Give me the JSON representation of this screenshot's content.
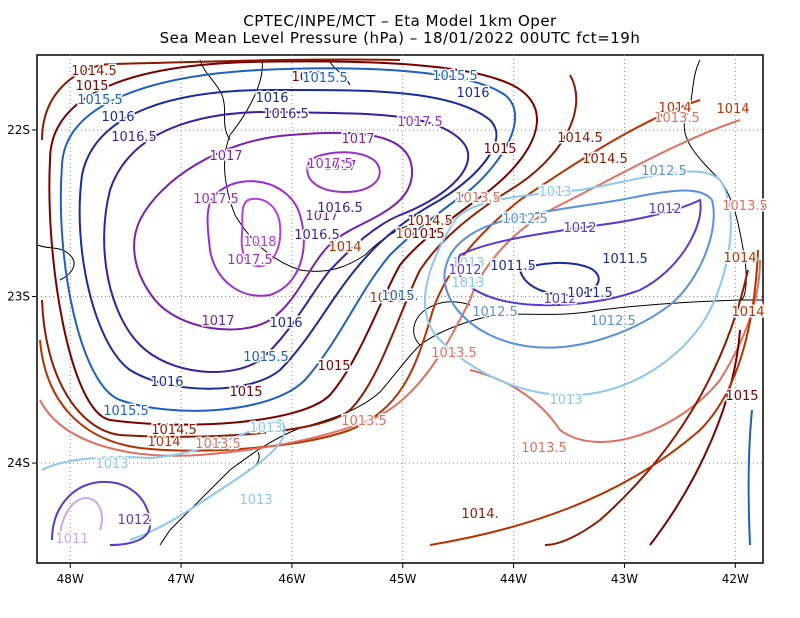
{
  "title_line1": "CPTEC/INPE/MCT –  Eta Model 1km Oper",
  "title_line2": "Sea Mean Level Pressure (hPa) – 18/01/2022 00UTC fct=19h",
  "map": {
    "lon_range": [
      -48.3,
      -41.75
    ],
    "lat_range": [
      -24.6,
      -21.55
    ],
    "x_ticks": [
      "48W",
      "47W",
      "46W",
      "45W",
      "44W",
      "43W",
      "42W"
    ],
    "y_ticks": [
      "22S",
      "23S",
      "24S"
    ],
    "grid": "dotted"
  },
  "contour_labels": [
    {
      "text": "1014.5",
      "color": "#8b1a00"
    },
    {
      "text": "1015",
      "color": "#7a0000"
    },
    {
      "text": "1015.5",
      "color": "#1f5fc2"
    },
    {
      "text": "1016",
      "color": "#1a2aa0"
    },
    {
      "text": "1016.5",
      "color": "#3a1fa0"
    },
    {
      "text": "1017",
      "color": "#7a1fb0"
    },
    {
      "text": "1017.5",
      "color": "#9a2fd0"
    },
    {
      "text": "1018",
      "color": "#b040e0"
    },
    {
      "text": "1015",
      "color": "#7a0000"
    },
    {
      "text": "1015.5",
      "color": "#1f5fc2"
    },
    {
      "text": "1016",
      "color": "#1a2aa0"
    },
    {
      "text": "1016.5",
      "color": "#3a1fa0"
    },
    {
      "text": "1017",
      "color": "#7a1fb0"
    },
    {
      "text": "1017",
      "color": "#7a1fb0"
    },
    {
      "text": "1017",
      "color": "#7a1fb0"
    },
    {
      "text": "1017.5",
      "color": "#9a2fd0"
    },
    {
      "text": "1017.5",
      "color": "#9a2fd0"
    },
    {
      "text": "1017.5",
      "color": "#9a2fd0"
    },
    {
      "text": "1017",
      "color": "#7a1fb0"
    },
    {
      "text": "1016.5",
      "color": "#3a1fa0"
    },
    {
      "text": "1016",
      "color": "#1a2aa0"
    },
    {
      "text": "1016.5",
      "color": "#3a1fa0"
    },
    {
      "text": "1015.5",
      "color": "#1f5fc2"
    },
    {
      "text": "1016",
      "color": "#1a2aa0"
    },
    {
      "text": "1015.5",
      "color": "#1f5fc2"
    },
    {
      "text": "1015",
      "color": "#7a0000"
    },
    {
      "text": "1014.5",
      "color": "#8b1a00"
    },
    {
      "text": "1014",
      "color": "#b83200"
    },
    {
      "text": "1014",
      "color": "#b83200"
    },
    {
      "text": "1013.5",
      "color": "#e07060"
    },
    {
      "text": "1013.5",
      "color": "#e07060"
    },
    {
      "text": "1013",
      "color": "#8ec8f0"
    },
    {
      "text": "1013",
      "color": "#8ec8f0"
    },
    {
      "text": "1013",
      "color": "#8ec8f0"
    },
    {
      "text": "1012",
      "color": "#5a3ad0"
    },
    {
      "text": "1011",
      "color": "#c8a8f0"
    },
    {
      "text": "1014",
      "color": "#b83200"
    },
    {
      "text": "1014.5",
      "color": "#8b1a00"
    },
    {
      "text": "1015",
      "color": "#7a0000"
    },
    {
      "text": "1016",
      "color": "#1a2aa0"
    },
    {
      "text": "1015.5",
      "color": "#1f5fc2"
    },
    {
      "text": "1015",
      "color": "#7a0000"
    },
    {
      "text": "1014.5",
      "color": "#8b1a00"
    },
    {
      "text": "1015",
      "color": "#7a0000"
    },
    {
      "text": "1014.5",
      "color": "#8b1a00"
    },
    {
      "text": "1014",
      "color": "#b83200"
    },
    {
      "text": "1014",
      "color": "#b83200"
    },
    {
      "text": "1013.5",
      "color": "#e07060"
    },
    {
      "text": "1013.5",
      "color": "#e07060"
    },
    {
      "text": "1013.5",
      "color": "#e07060"
    },
    {
      "text": "1013.5",
      "color": "#e07060"
    },
    {
      "text": "1013",
      "color": "#8ec8f0"
    },
    {
      "text": "1013",
      "color": "#8ec8f0"
    },
    {
      "text": "1013",
      "color": "#8ec8f0"
    },
    {
      "text": "1013",
      "color": "#8ec8f0"
    },
    {
      "text": "1012.5",
      "color": "#5a90e0"
    },
    {
      "text": "1012.5",
      "color": "#5a90e0"
    },
    {
      "text": "1012.5",
      "color": "#5a90e0"
    },
    {
      "text": "1012.5",
      "color": "#5a90e0"
    },
    {
      "text": "1012",
      "color": "#5a3ad0"
    },
    {
      "text": "1012",
      "color": "#5a3ad0"
    },
    {
      "text": "1012",
      "color": "#5a3ad0"
    },
    {
      "text": "1012",
      "color": "#5a3ad0"
    },
    {
      "text": "1011.5",
      "color": "#1a2aa0"
    },
    {
      "text": "1011.5",
      "color": "#1a2aa0"
    },
    {
      "text": "1011.5",
      "color": "#1a2aa0"
    },
    {
      "text": "1013.5",
      "color": "#e07060"
    },
    {
      "text": "1014",
      "color": "#b83200"
    },
    {
      "text": "1014",
      "color": "#b83200"
    },
    {
      "text": "1014",
      "color": "#b83200"
    },
    {
      "text": "1014.",
      "color": "#8b1a00"
    },
    {
      "text": "1015",
      "color": "#7a0000"
    },
    {
      "text": "1015.",
      "color": "#1f5fc2"
    }
  ],
  "colors": {
    "1011": "#c8a8f0",
    "1011.5": "#1a2aa0",
    "1012": "#5a3ad0",
    "1012.5": "#5a90e0",
    "1013": "#8ec8f0",
    "1013.5": "#e07060",
    "1014": "#b83200",
    "1014.5": "#8b1a00",
    "1015": "#7a0000",
    "1015.5": "#1f5fc2",
    "1016": "#1a2aa0",
    "1016.5": "#3a1fa0",
    "1017": "#7a1fb0",
    "1017.5": "#9a2fd0",
    "1018": "#b040e0",
    "coastline": "#000000"
  }
}
